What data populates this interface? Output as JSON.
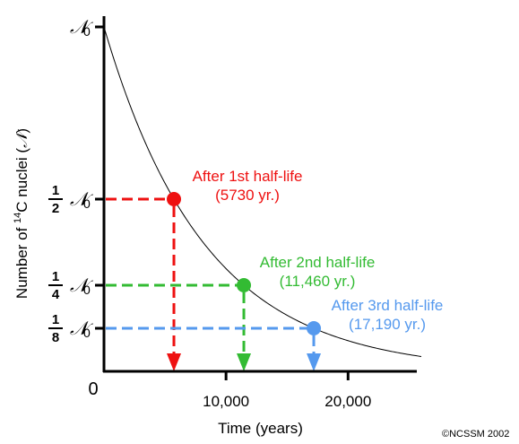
{
  "chart_data": {
    "type": "line",
    "xlabel": "Time (years)",
    "ylabel_prefix": "Number of ",
    "ylabel_sup": "14",
    "ylabel_suffix": "C nuclei (",
    "ylabel_symbol": "𝒩",
    "ylabel_close": ")",
    "xlim": [
      0,
      26000
    ],
    "ylim": [
      0,
      1
    ],
    "x_ticks": [
      {
        "value": 10000,
        "label": "10,000"
      },
      {
        "value": 20000,
        "label": "20,000"
      }
    ],
    "origin_label": "0",
    "y_ticks": [
      {
        "value": 1,
        "num": "",
        "den": "",
        "symbol": "𝒩",
        "sub": "0"
      },
      {
        "value": 0.5,
        "num": "1",
        "den": "2",
        "symbol": "𝒩",
        "sub": "0"
      },
      {
        "value": 0.25,
        "num": "1",
        "den": "4",
        "symbol": "𝒩",
        "sub": "0"
      },
      {
        "value": 0.125,
        "num": "1",
        "den": "8",
        "symbol": "𝒩",
        "sub": "0"
      }
    ],
    "series": [
      {
        "half_life": 5730,
        "x_range": [
          0,
          26000
        ],
        "color": "#000000"
      }
    ],
    "points": [
      {
        "x": 5730,
        "y": 0.5,
        "color": "#ee1111",
        "label1": "After 1st half-life",
        "label2": "(5730 yr.)"
      },
      {
        "x": 11460,
        "y": 0.25,
        "color": "#33bb33",
        "label1": "After 2nd half-life",
        "label2": "(11,460 yr.)"
      },
      {
        "x": 17190,
        "y": 0.125,
        "color": "#5599ee",
        "label1": "After 3rd half-life",
        "label2": "(17,190 yr.)"
      }
    ],
    "grid": false,
    "legend": "none"
  },
  "credit": "©NCSSM 2002"
}
